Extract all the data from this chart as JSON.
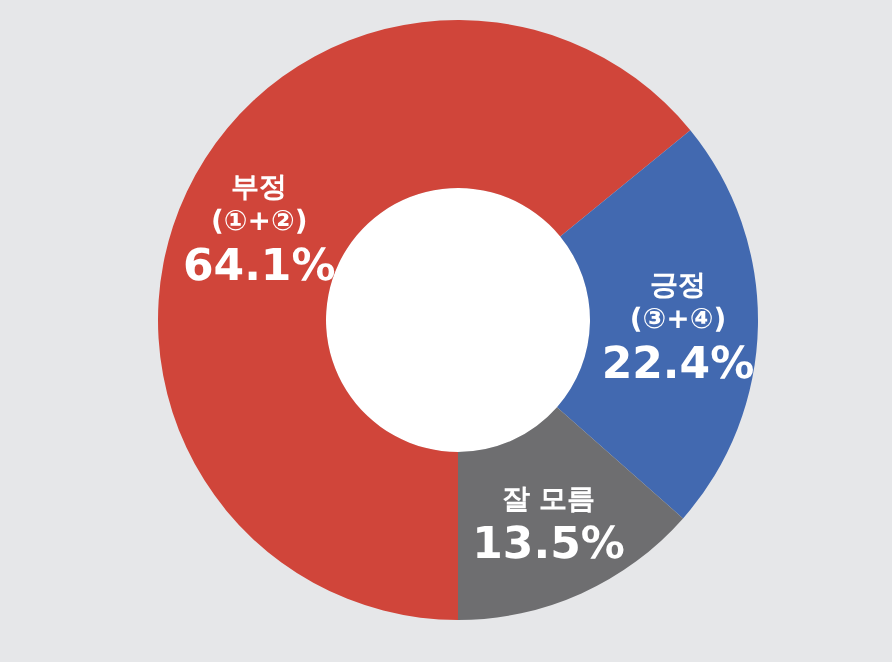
{
  "chart_data": {
    "type": "donut",
    "categories": [
      "부정\n(①+②)",
      "긍정\n(③+④)",
      "잘 모름"
    ],
    "values": [
      64.1,
      22.4,
      13.5
    ],
    "colors": [
      "#d0453a",
      "#4269b0",
      "#6e6e70"
    ],
    "value_labels": [
      "64.1%",
      "22.4%",
      "13.5%"
    ]
  }
}
